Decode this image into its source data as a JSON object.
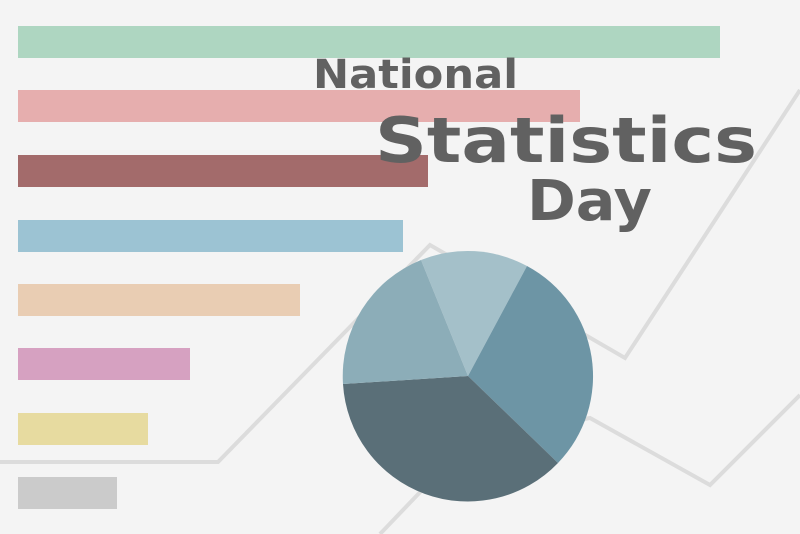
{
  "header": {
    "lines": [
      "National",
      "Statistics",
      "Day"
    ]
  }
}
